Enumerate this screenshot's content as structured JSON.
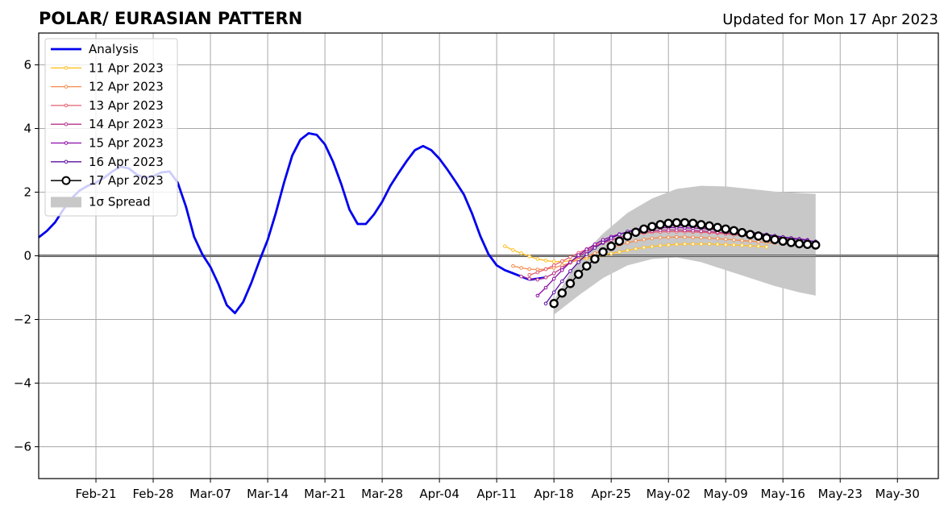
{
  "header": {
    "title": "POLAR/ EURASIAN  PATTERN",
    "updated": "Updated for Mon 17 Apr 2023"
  },
  "chart_data": {
    "type": "line",
    "title": "POLAR/ EURASIAN  PATTERN",
    "xlabel": "",
    "ylabel": "",
    "x_axis": {
      "type": "date",
      "range": [
        "2023-02-14",
        "2023-06-04"
      ]
    },
    "ylim": [
      -7,
      7
    ],
    "x_tick_labels": [
      "Feb-21",
      "Feb-28",
      "Mar-07",
      "Mar-14",
      "Mar-21",
      "Mar-28",
      "Apr-04",
      "Apr-11",
      "Apr-18",
      "Apr-25",
      "May-02",
      "May-09",
      "May-16",
      "May-23",
      "May-30"
    ],
    "y_ticks": [
      -6,
      -4,
      -2,
      0,
      2,
      4,
      6
    ],
    "y_tick_labels": [
      "−6",
      "−4",
      "−2",
      "0",
      "2",
      "4",
      "6"
    ],
    "grid": true,
    "legend_position": "top-left",
    "zero_line": 0,
    "series": [
      {
        "name": "Analysis",
        "color": "#0000ee",
        "x": [
          "2023-02-14",
          "2023-02-15",
          "2023-02-16",
          "2023-02-17",
          "2023-02-18",
          "2023-02-19",
          "2023-02-20",
          "2023-02-21",
          "2023-02-22",
          "2023-02-23",
          "2023-02-24",
          "2023-02-25",
          "2023-02-26",
          "2023-02-27",
          "2023-02-28",
          "2023-03-01",
          "2023-03-02",
          "2023-03-03",
          "2023-03-04",
          "2023-03-05",
          "2023-03-06",
          "2023-03-07",
          "2023-03-08",
          "2023-03-09",
          "2023-03-10",
          "2023-03-11",
          "2023-03-12",
          "2023-03-13",
          "2023-03-14",
          "2023-03-15",
          "2023-03-16",
          "2023-03-17",
          "2023-03-18",
          "2023-03-19",
          "2023-03-20",
          "2023-03-21",
          "2023-03-22",
          "2023-03-23",
          "2023-03-24",
          "2023-03-25",
          "2023-03-26",
          "2023-03-27",
          "2023-03-28",
          "2023-03-29",
          "2023-03-30",
          "2023-03-31",
          "2023-04-01",
          "2023-04-02",
          "2023-04-03",
          "2023-04-04",
          "2023-04-05",
          "2023-04-06",
          "2023-04-07",
          "2023-04-08",
          "2023-04-09",
          "2023-04-10",
          "2023-04-11",
          "2023-04-12",
          "2023-04-13",
          "2023-04-14",
          "2023-04-15",
          "2023-04-16",
          "2023-04-17"
        ],
        "y": [
          0.58,
          0.78,
          1.05,
          1.45,
          1.8,
          2.05,
          2.2,
          2.3,
          2.45,
          2.65,
          2.8,
          2.75,
          2.55,
          2.45,
          2.5,
          2.62,
          2.65,
          2.3,
          1.55,
          0.6,
          0.05,
          -0.35,
          -0.9,
          -1.55,
          -1.8,
          -1.45,
          -0.85,
          -0.15,
          0.5,
          1.35,
          2.3,
          3.15,
          3.65,
          3.85,
          3.8,
          3.5,
          2.95,
          2.25,
          1.45,
          1.0,
          1.0,
          1.3,
          1.7,
          2.2,
          2.6,
          2.98,
          3.32,
          3.45,
          3.32,
          3.05,
          2.7,
          2.32,
          1.92,
          1.32,
          0.62,
          0.05,
          -0.3,
          -0.45,
          -0.55,
          -0.65,
          -0.75,
          -0.72,
          -0.68
        ]
      },
      {
        "name": "11 Apr 2023",
        "color": "#ffc125",
        "x": [
          "2023-04-12",
          "2023-04-13",
          "2023-04-14",
          "2023-04-15",
          "2023-04-16",
          "2023-04-17",
          "2023-04-18",
          "2023-04-19",
          "2023-04-20",
          "2023-04-21",
          "2023-04-22",
          "2023-04-23",
          "2023-04-24",
          "2023-04-25",
          "2023-04-26",
          "2023-04-27",
          "2023-04-28",
          "2023-04-29",
          "2023-04-30",
          "2023-05-01",
          "2023-05-02",
          "2023-05-03",
          "2023-05-04",
          "2023-05-05",
          "2023-05-06",
          "2023-05-07",
          "2023-05-08",
          "2023-05-09",
          "2023-05-10",
          "2023-05-11",
          "2023-05-12",
          "2023-05-13",
          "2023-05-14"
        ],
        "y": [
          0.3,
          0.18,
          0.08,
          -0.02,
          -0.1,
          -0.15,
          -0.18,
          -0.18,
          -0.16,
          -0.12,
          -0.08,
          -0.03,
          0.02,
          0.07,
          0.12,
          0.17,
          0.22,
          0.26,
          0.29,
          0.32,
          0.34,
          0.36,
          0.37,
          0.37,
          0.37,
          0.37,
          0.36,
          0.35,
          0.34,
          0.33,
          0.31,
          0.3,
          0.28
        ]
      },
      {
        "name": "12 Apr 2023",
        "color": "#f58b4c",
        "x": [
          "2023-04-13",
          "2023-04-14",
          "2023-04-15",
          "2023-04-16",
          "2023-04-17",
          "2023-04-18",
          "2023-04-19",
          "2023-04-20",
          "2023-04-21",
          "2023-04-22",
          "2023-04-23",
          "2023-04-24",
          "2023-04-25",
          "2023-04-26",
          "2023-04-27",
          "2023-04-28",
          "2023-04-29",
          "2023-04-30",
          "2023-05-01",
          "2023-05-02",
          "2023-05-03",
          "2023-05-04",
          "2023-05-05",
          "2023-05-06",
          "2023-05-07",
          "2023-05-08",
          "2023-05-09",
          "2023-05-10",
          "2023-05-11",
          "2023-05-12",
          "2023-05-13",
          "2023-05-14",
          "2023-05-15"
        ],
        "y": [
          -0.32,
          -0.38,
          -0.42,
          -0.43,
          -0.42,
          -0.38,
          -0.3,
          -0.22,
          -0.12,
          -0.02,
          0.08,
          0.17,
          0.26,
          0.34,
          0.41,
          0.47,
          0.51,
          0.55,
          0.57,
          0.58,
          0.59,
          0.59,
          0.58,
          0.57,
          0.56,
          0.54,
          0.52,
          0.5,
          0.48,
          0.46,
          0.44,
          0.42,
          0.4
        ]
      },
      {
        "name": "13 Apr 2023",
        "color": "#e75d6f",
        "x": [
          "2023-04-15",
          "2023-04-16",
          "2023-04-17",
          "2023-04-18",
          "2023-04-19",
          "2023-04-20",
          "2023-04-21",
          "2023-04-22",
          "2023-04-23",
          "2023-04-24",
          "2023-04-25",
          "2023-04-26",
          "2023-04-27",
          "2023-04-28",
          "2023-04-29",
          "2023-04-30",
          "2023-05-01",
          "2023-05-02",
          "2023-05-03",
          "2023-05-04",
          "2023-05-05",
          "2023-05-06",
          "2023-05-07",
          "2023-05-08",
          "2023-05-09",
          "2023-05-10",
          "2023-05-11",
          "2023-05-12",
          "2023-05-13",
          "2023-05-14",
          "2023-05-15",
          "2023-05-16"
        ],
        "y": [
          -0.6,
          -0.52,
          -0.42,
          -0.3,
          -0.17,
          -0.04,
          0.09,
          0.21,
          0.32,
          0.42,
          0.5,
          0.57,
          0.63,
          0.68,
          0.71,
          0.74,
          0.75,
          0.76,
          0.76,
          0.76,
          0.75,
          0.74,
          0.73,
          0.71,
          0.69,
          0.66,
          0.64,
          0.61,
          0.58,
          0.55,
          0.52,
          0.5
        ]
      },
      {
        "name": "14 Apr 2023",
        "color": "#b83289",
        "x": [
          "2023-04-14",
          "2023-04-15",
          "2023-04-16",
          "2023-04-17",
          "2023-04-18",
          "2023-04-19",
          "2023-04-20",
          "2023-04-21",
          "2023-04-22",
          "2023-04-23",
          "2023-04-24",
          "2023-04-25",
          "2023-04-26",
          "2023-04-27",
          "2023-04-28",
          "2023-04-29",
          "2023-04-30",
          "2023-05-01",
          "2023-05-02",
          "2023-05-03",
          "2023-05-04",
          "2023-05-05",
          "2023-05-06",
          "2023-05-07",
          "2023-05-08",
          "2023-05-09",
          "2023-05-10",
          "2023-05-11",
          "2023-05-12",
          "2023-05-13",
          "2023-05-14",
          "2023-05-15",
          "2023-05-16",
          "2023-05-17",
          "2023-05-18"
        ],
        "y": [
          -0.65,
          -0.72,
          -0.75,
          -0.68,
          -0.55,
          -0.38,
          -0.2,
          -0.02,
          0.14,
          0.28,
          0.4,
          0.5,
          0.58,
          0.65,
          0.71,
          0.75,
          0.78,
          0.8,
          0.81,
          0.81,
          0.8,
          0.79,
          0.78,
          0.76,
          0.74,
          0.72,
          0.7,
          0.67,
          0.65,
          0.62,
          0.6,
          0.58,
          0.56,
          0.54,
          0.52
        ]
      },
      {
        "name": "15 Apr 2023",
        "color": "#8b0aa5",
        "x": [
          "2023-04-16",
          "2023-04-17",
          "2023-04-18",
          "2023-04-19",
          "2023-04-20",
          "2023-04-21",
          "2023-04-22",
          "2023-04-23",
          "2023-04-24",
          "2023-04-25",
          "2023-04-26",
          "2023-04-27",
          "2023-04-28",
          "2023-04-29",
          "2023-04-30",
          "2023-05-01",
          "2023-05-02",
          "2023-05-03",
          "2023-05-04",
          "2023-05-05",
          "2023-05-06",
          "2023-05-07",
          "2023-05-08",
          "2023-05-09",
          "2023-05-10",
          "2023-05-11",
          "2023-05-12",
          "2023-05-13",
          "2023-05-14",
          "2023-05-15",
          "2023-05-16",
          "2023-05-17",
          "2023-05-18",
          "2023-05-19"
        ],
        "y": [
          -1.25,
          -1.0,
          -0.72,
          -0.45,
          -0.2,
          0.02,
          0.2,
          0.36,
          0.5,
          0.6,
          0.68,
          0.75,
          0.8,
          0.84,
          0.86,
          0.88,
          0.89,
          0.89,
          0.88,
          0.87,
          0.86,
          0.84,
          0.82,
          0.8,
          0.77,
          0.74,
          0.71,
          0.68,
          0.65,
          0.62,
          0.59,
          0.56,
          0.53,
          0.5
        ]
      },
      {
        "name": "16 Apr 2023",
        "color": "#5c0fa3",
        "x": [
          "2023-04-17",
          "2023-04-18",
          "2023-04-19",
          "2023-04-20",
          "2023-04-21",
          "2023-04-22",
          "2023-04-23",
          "2023-04-24",
          "2023-04-25",
          "2023-04-26",
          "2023-04-27",
          "2023-04-28",
          "2023-04-29",
          "2023-04-30",
          "2023-05-01",
          "2023-05-02",
          "2023-05-03",
          "2023-05-04",
          "2023-05-05",
          "2023-05-06",
          "2023-05-07",
          "2023-05-08",
          "2023-05-09",
          "2023-05-10",
          "2023-05-11",
          "2023-05-12",
          "2023-05-13",
          "2023-05-14",
          "2023-05-15",
          "2023-05-16",
          "2023-05-17",
          "2023-05-18",
          "2023-05-19",
          "2023-05-20"
        ],
        "y": [
          -1.5,
          -1.15,
          -0.8,
          -0.48,
          -0.2,
          0.05,
          0.25,
          0.42,
          0.56,
          0.67,
          0.76,
          0.83,
          0.88,
          0.92,
          0.95,
          0.96,
          0.96,
          0.95,
          0.94,
          0.92,
          0.9,
          0.87,
          0.84,
          0.81,
          0.78,
          0.74,
          0.71,
          0.67,
          0.63,
          0.59,
          0.55,
          0.51,
          0.48,
          0.45
        ]
      },
      {
        "name": "17 Apr 2023",
        "color": "#000000",
        "x": [
          "2023-04-18",
          "2023-04-19",
          "2023-04-20",
          "2023-04-21",
          "2023-04-22",
          "2023-04-23",
          "2023-04-24",
          "2023-04-25",
          "2023-04-26",
          "2023-04-27",
          "2023-04-28",
          "2023-04-29",
          "2023-04-30",
          "2023-05-01",
          "2023-05-02",
          "2023-05-03",
          "2023-05-04",
          "2023-05-05",
          "2023-05-06",
          "2023-05-07",
          "2023-05-08",
          "2023-05-09",
          "2023-05-10",
          "2023-05-11",
          "2023-05-12",
          "2023-05-13",
          "2023-05-14",
          "2023-05-15",
          "2023-05-16",
          "2023-05-17",
          "2023-05-18",
          "2023-05-19",
          "2023-05-20"
        ],
        "y": [
          -1.5,
          -1.17,
          -0.87,
          -0.58,
          -0.32,
          -0.1,
          0.12,
          0.3,
          0.46,
          0.62,
          0.74,
          0.84,
          0.92,
          0.98,
          1.02,
          1.04,
          1.04,
          1.02,
          0.98,
          0.94,
          0.89,
          0.84,
          0.79,
          0.73,
          0.67,
          0.62,
          0.56,
          0.51,
          0.46,
          0.42,
          0.38,
          0.36,
          0.34
        ]
      }
    ],
    "spread": {
      "name": "1σ Spread",
      "color": "#c8c8c8",
      "x": [
        "2023-04-18",
        "2023-04-21",
        "2023-04-24",
        "2023-04-27",
        "2023-04-30",
        "2023-05-03",
        "2023-05-06",
        "2023-05-09",
        "2023-05-12",
        "2023-05-15",
        "2023-05-18",
        "2023-05-20"
      ],
      "upper": [
        -1.4,
        -0.1,
        0.7,
        1.35,
        1.8,
        2.1,
        2.2,
        2.18,
        2.1,
        2.02,
        1.97,
        1.95
      ],
      "lower": [
        -1.85,
        -1.25,
        -0.7,
        -0.3,
        -0.1,
        -0.05,
        -0.2,
        -0.45,
        -0.7,
        -0.95,
        -1.15,
        -1.25
      ]
    }
  }
}
